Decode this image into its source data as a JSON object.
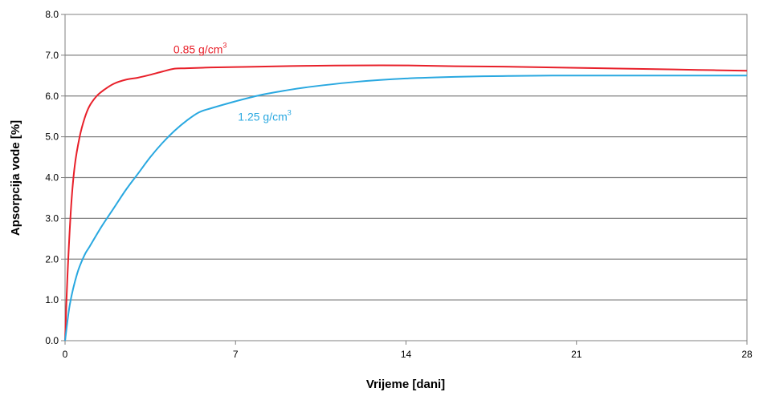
{
  "chart_data": {
    "type": "line",
    "xlabel": "Vrijeme [dani]",
    "ylabel": "Apsorpcija vode [%]",
    "xlim": [
      0,
      28
    ],
    "ylim": [
      0,
      8
    ],
    "xticks": [
      0,
      7,
      14,
      21,
      28
    ],
    "xtick_labels": [
      "0",
      "7",
      "14",
      "21",
      "28"
    ],
    "yticks": [
      0,
      1,
      2,
      3,
      4,
      5,
      6,
      7,
      8
    ],
    "ytick_labels": [
      "0.0",
      "1.0",
      "2.0",
      "3.0",
      "4.0",
      "5.0",
      "6.0",
      "7.0",
      "8.0"
    ],
    "grid": "horizontal",
    "legend": "none",
    "series": [
      {
        "name": "0.85 g/cm",
        "name_sup": "3",
        "color": "#e8202a",
        "x": [
          0,
          0.1,
          0.25,
          0.4,
          0.6,
          0.8,
          1.0,
          1.3,
          1.6,
          2.0,
          2.5,
          3.0,
          3.5,
          4.0,
          4.5,
          5.0,
          6.0,
          7.0,
          8.0,
          10.0,
          12.0,
          14.0,
          16.0,
          18.0,
          20.0,
          22.0,
          24.0,
          26.0,
          28.0
        ],
        "y": [
          0,
          1.6,
          3.3,
          4.3,
          5.0,
          5.45,
          5.75,
          6.0,
          6.15,
          6.3,
          6.4,
          6.45,
          6.52,
          6.6,
          6.67,
          6.68,
          6.7,
          6.71,
          6.72,
          6.74,
          6.75,
          6.75,
          6.73,
          6.72,
          6.7,
          6.68,
          6.66,
          6.64,
          6.62
        ]
      },
      {
        "name": "1.25 g/cm",
        "name_sup": "3",
        "color": "#29a8e0",
        "x": [
          0,
          0.2,
          0.5,
          0.8,
          1.0,
          1.5,
          2.0,
          2.5,
          3.0,
          3.5,
          4.0,
          4.5,
          5.0,
          5.5,
          6.0,
          7.0,
          8.0,
          9.0,
          10.0,
          12.0,
          14.0,
          16.0,
          18.0,
          20.0,
          22.0,
          24.0,
          26.0,
          28.0
        ],
        "y": [
          0,
          0.9,
          1.65,
          2.1,
          2.3,
          2.8,
          3.25,
          3.7,
          4.1,
          4.5,
          4.85,
          5.15,
          5.4,
          5.6,
          5.7,
          5.87,
          6.02,
          6.13,
          6.22,
          6.35,
          6.43,
          6.47,
          6.49,
          6.5,
          6.5,
          6.5,
          6.5,
          6.5
        ]
      }
    ]
  }
}
